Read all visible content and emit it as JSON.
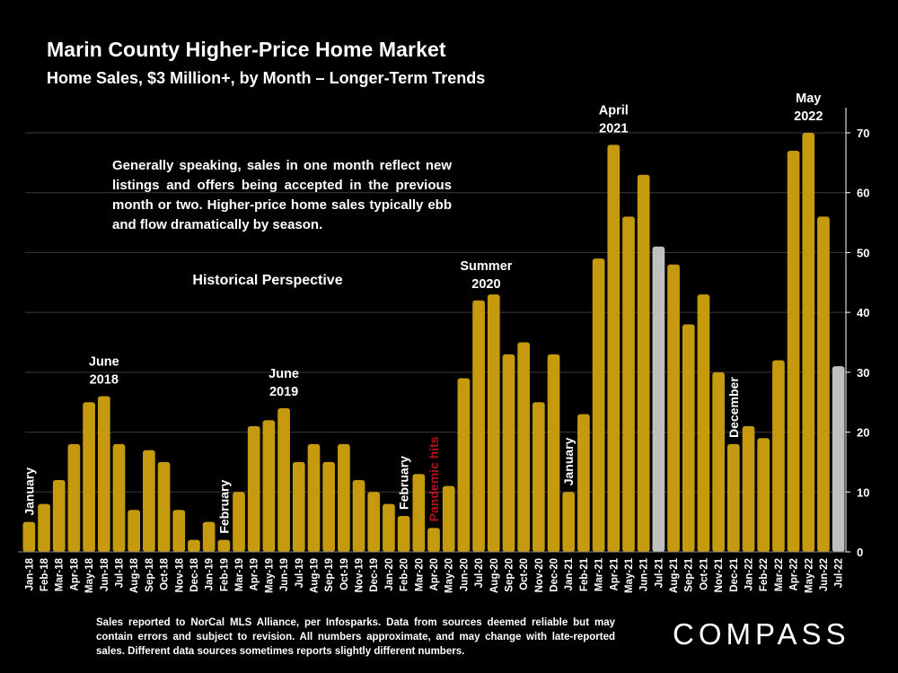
{
  "title": "Marin County Higher-Price Home Market",
  "subtitle": "Home Sales, $3 Million+, by Month – Longer-Term Trends",
  "note": "Generally speaking, sales in one month reflect new listings and offers being accepted in the previous month or two. Higher-price home sales typically ebb and flow dramatically by season.",
  "footnote": "Sales reported to NorCal MLS Alliance, per Infosparks. Data from sources deemed reliable but may contain errors and subject to revision. All numbers approximate, and may change with late-reported sales. Different data sources sometimes reports slightly different numbers.",
  "logo": "COMPASS",
  "colors": {
    "bar": "#c59a0e",
    "bar_highlight": "#c0c0c0",
    "grid": "#3a3a3a",
    "axis": "#ffffff",
    "pandemic": "#b3121d"
  },
  "chart_data": {
    "type": "bar",
    "title": "Marin County Higher-Price Home Market",
    "subtitle": "Home Sales, $3 Million+, by Month – Longer-Term Trends",
    "xlabel": "",
    "ylabel": "",
    "ylim": [
      0,
      70
    ],
    "yticks": [
      0,
      10,
      20,
      30,
      40,
      50,
      60,
      70
    ],
    "y_axis_side": "right",
    "grid": true,
    "categories": [
      "Jan-18",
      "Feb-18",
      "Mar-18",
      "Apr-18",
      "May-18",
      "Jun-18",
      "Jul-18",
      "Aug-18",
      "Sep-18",
      "Oct-18",
      "Nov-18",
      "Dec-18",
      "Jan-19",
      "Feb-19",
      "Mar-19",
      "Apr-19",
      "May-19",
      "Jun-19",
      "Jul-19",
      "Aug-19",
      "Sep-19",
      "Oct-19",
      "Nov-19",
      "Dec-19",
      "Jan-20",
      "Feb-20",
      "Mar-20",
      "Apr-20",
      "May-20",
      "Jun-20",
      "Jul-20",
      "Aug-20",
      "Sep-20",
      "Oct-20",
      "Nov-20",
      "Dec-20",
      "Jan-21",
      "Feb-21",
      "Mar-21",
      "Apr-21",
      "May-21",
      "Jun-21",
      "Jul-21",
      "Aug-21",
      "Sep-21",
      "Oct-21",
      "Nov-21",
      "Dec-21",
      "Jan-22",
      "Feb-22",
      "Mar-22",
      "Apr-22",
      "May-22",
      "Jun-22",
      "Jul-22"
    ],
    "values": [
      5,
      8,
      12,
      18,
      25,
      26,
      18,
      7,
      17,
      15,
      7,
      2,
      5,
      2,
      10,
      21,
      22,
      24,
      15,
      18,
      15,
      18,
      12,
      10,
      8,
      6,
      13,
      4,
      11,
      29,
      42,
      43,
      33,
      35,
      25,
      33,
      10,
      23,
      49,
      68,
      56,
      63,
      51,
      48,
      38,
      43,
      30,
      18,
      21,
      19,
      32,
      67,
      70,
      56,
      31
    ],
    "highlighted": [
      "Jul-21",
      "Jul-22"
    ],
    "annotations": [
      {
        "text": "January",
        "category": "Jan-18",
        "orientation": "vertical"
      },
      {
        "text": "June\n2018",
        "category": "Jun-18",
        "orientation": "horizontal"
      },
      {
        "text": "February",
        "category": "Feb-19",
        "orientation": "vertical"
      },
      {
        "text": "June\n2019",
        "category": "Jun-19",
        "orientation": "horizontal"
      },
      {
        "text": "February",
        "category": "Feb-20",
        "orientation": "vertical"
      },
      {
        "text": "Pandemic hits",
        "category": "Apr-20",
        "orientation": "vertical",
        "style": "pandemic"
      },
      {
        "text": "Summer\n2020",
        "category": "Jul-20",
        "orientation": "horizontal",
        "offset": 0.5
      },
      {
        "text": "January",
        "category": "Jan-21",
        "orientation": "vertical"
      },
      {
        "text": "April\n2021",
        "category": "Apr-21",
        "orientation": "horizontal"
      },
      {
        "text": "December",
        "category": "Dec-21",
        "orientation": "vertical"
      },
      {
        "text": "May\n2022",
        "category": "May-22",
        "orientation": "horizontal"
      }
    ],
    "section_label": "Historical Perspective"
  }
}
